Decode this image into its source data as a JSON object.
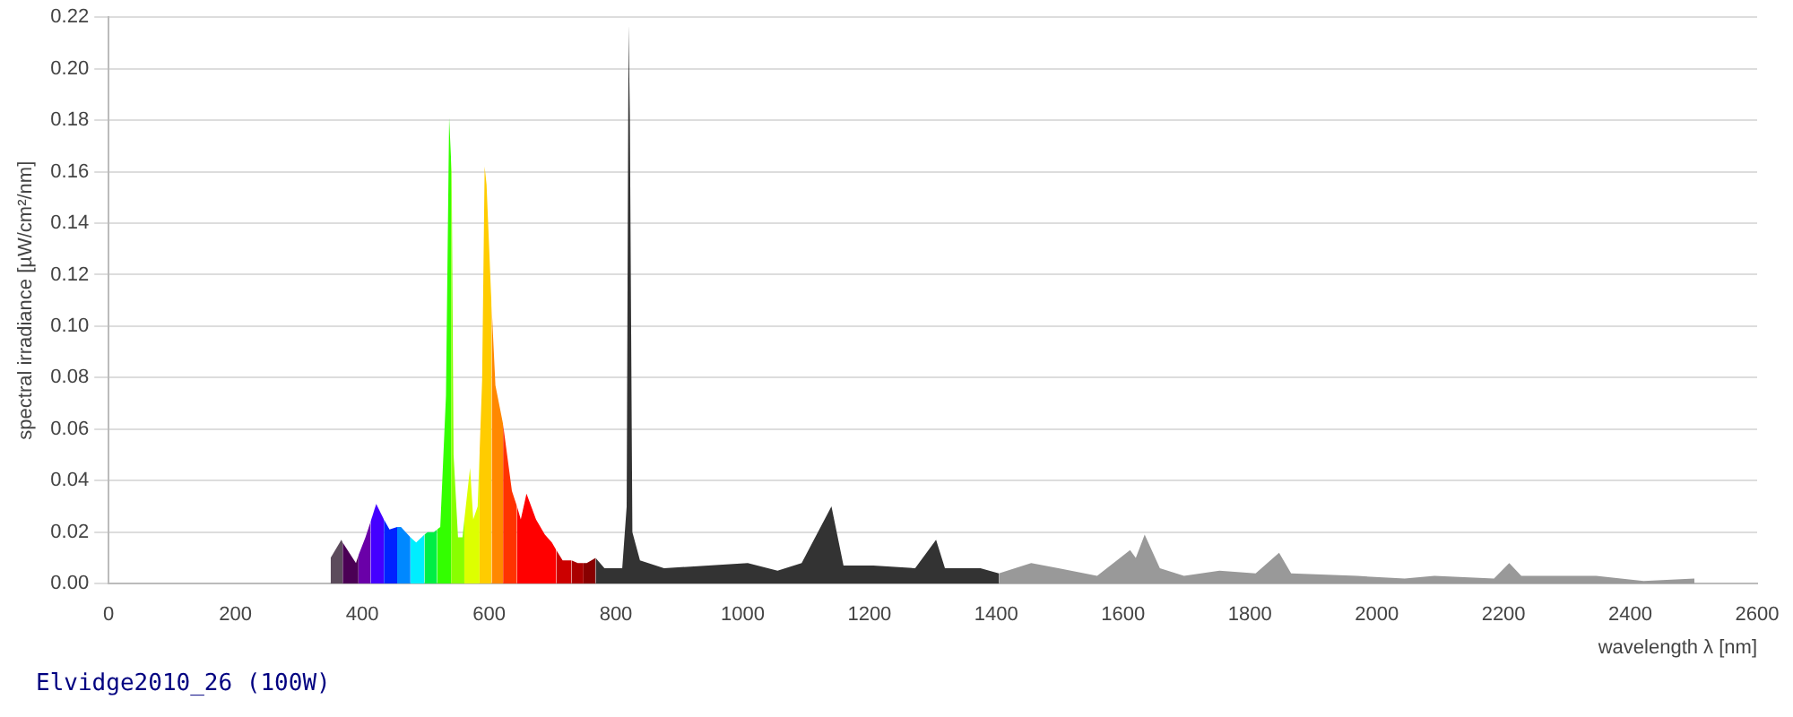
{
  "chart_data": {
    "type": "area",
    "title": "Elvidge2010_26 (100W)",
    "xlabel": "wavelength λ [nm]",
    "ylabel": "spectral irradiance [µW/cm²/nm]",
    "xlim": [
      0,
      2600
    ],
    "xticks": [
      0,
      200,
      400,
      600,
      800,
      1000,
      1200,
      1400,
      1600,
      1800,
      2000,
      2200,
      2400,
      2600
    ],
    "ylim": [
      0,
      0.22
    ],
    "yticks": [
      {
        "value": 0,
        "label": "0.00"
      },
      {
        "value": 0.02,
        "label": "0.02"
      },
      {
        "value": 0.04,
        "label": "0.04"
      },
      {
        "value": 0.06,
        "label": "0.06"
      },
      {
        "value": 0.08,
        "label": "0.08"
      },
      {
        "value": 0.1,
        "label": "0.10"
      },
      {
        "value": 0.12,
        "label": "0.12"
      },
      {
        "value": 0.14,
        "label": "0.14"
      },
      {
        "value": 0.16,
        "label": "0.16"
      },
      {
        "value": 0.18,
        "label": "0.18"
      },
      {
        "value": 0.2,
        "label": "0.20"
      },
      {
        "value": 0.22,
        "label": "0.22"
      }
    ],
    "grid": "y",
    "marker": "none",
    "series": [
      {
        "color": "#5c4b5c",
        "x": [
          350,
          367,
          369
        ],
        "values": [
          0.01,
          0.017,
          0.016
        ]
      },
      {
        "color": "#4b0055",
        "x": [
          369,
          390,
          394
        ],
        "values": [
          0.016,
          0.008,
          0.011
        ]
      },
      {
        "color": "#6a00a8",
        "x": [
          394,
          405,
          413
        ],
        "values": [
          0.011,
          0.018,
          0.024
        ]
      },
      {
        "color": "#4400ff",
        "x": [
          413,
          422,
          434
        ],
        "values": [
          0.024,
          0.031,
          0.025
        ]
      },
      {
        "color": "#0022ff",
        "x": [
          434,
          443,
          455
        ],
        "values": [
          0.025,
          0.021,
          0.022
        ]
      },
      {
        "color": "#0088ff",
        "x": [
          455,
          461,
          476
        ],
        "values": [
          0.022,
          0.022,
          0.018
        ]
      },
      {
        "color": "#00eeff",
        "x": [
          476,
          485,
          498
        ],
        "values": [
          0.018,
          0.016,
          0.019
        ]
      },
      {
        "color": "#00ee44",
        "x": [
          498,
          503,
          513,
          518
        ],
        "values": [
          0.019,
          0.02,
          0.02,
          0.021
        ]
      },
      {
        "color": "#33ff00",
        "x": [
          518,
          523,
          532,
          537,
          540
        ],
        "values": [
          0.021,
          0.022,
          0.073,
          0.181,
          0.165
        ]
      },
      {
        "color": "#88ff00",
        "x": [
          540,
          541,
          544,
          551,
          558,
          561
        ],
        "values": [
          0.165,
          0.16,
          0.05,
          0.018,
          0.018,
          0.025
        ]
      },
      {
        "color": "#ddff00",
        "x": [
          561,
          570,
          575,
          582,
          585
        ],
        "values": [
          0.025,
          0.045,
          0.025,
          0.03,
          0.051
        ]
      },
      {
        "color": "#ffcc00",
        "x": [
          585,
          589,
          593,
          596,
          603,
          604
        ],
        "values": [
          0.051,
          0.079,
          0.162,
          0.155,
          0.113,
          0.108
        ]
      },
      {
        "color": "#ff8800",
        "x": [
          604,
          610,
          622
        ],
        "values": [
          0.108,
          0.077,
          0.062
        ]
      },
      {
        "color": "#ff3300",
        "x": [
          622,
          636,
          644
        ],
        "values": [
          0.062,
          0.036,
          0.03
        ]
      },
      {
        "color": "#ff0000",
        "x": [
          644,
          650,
          659,
          674,
          688,
          699,
          706
        ],
        "values": [
          0.03,
          0.025,
          0.035,
          0.025,
          0.019,
          0.016,
          0.013
        ]
      },
      {
        "color": "#cc0000",
        "x": [
          706,
          716,
          730
        ],
        "values": [
          0.013,
          0.009,
          0.009
        ]
      },
      {
        "color": "#aa0000",
        "x": [
          730,
          740,
          749
        ],
        "values": [
          0.009,
          0.008,
          0.008
        ]
      },
      {
        "color": "#880000",
        "x": [
          749,
          754,
          768
        ],
        "values": [
          0.008,
          0.008,
          0.01
        ]
      },
      {
        "color": "#333333",
        "x": [
          768,
          782,
          810,
          817,
          820,
          822,
          826,
          838,
          876,
          1008,
          1055,
          1093,
          1140,
          1159,
          1206,
          1272,
          1305,
          1319,
          1375,
          1404
        ],
        "values": [
          0.01,
          0.006,
          0.006,
          0.03,
          0.217,
          0.182,
          0.02,
          0.009,
          0.006,
          0.008,
          0.005,
          0.008,
          0.03,
          0.007,
          0.007,
          0.006,
          0.017,
          0.006,
          0.006,
          0.004
        ]
      },
      {
        "color": "#999999",
        "x": [
          1404,
          1455,
          1498,
          1559,
          1611,
          1620,
          1634,
          1658,
          1696,
          1752,
          1809,
          1846,
          1865,
          1969,
          2044,
          2091,
          2185,
          2209,
          2228,
          2346,
          2421,
          2501
        ],
        "values": [
          0.004,
          0.008,
          0.006,
          0.003,
          0.013,
          0.01,
          0.019,
          0.006,
          0.003,
          0.005,
          0.004,
          0.012,
          0.004,
          0.003,
          0.002,
          0.003,
          0.002,
          0.008,
          0.003,
          0.003,
          0.001,
          0.002
        ]
      }
    ]
  }
}
